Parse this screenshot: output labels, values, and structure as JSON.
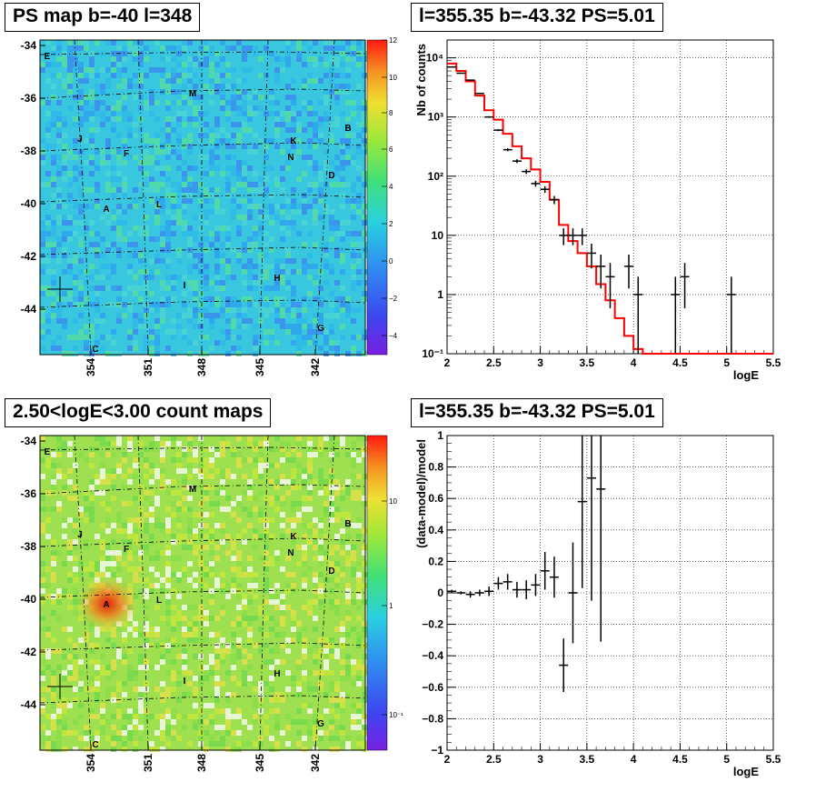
{
  "panels": {
    "tl_title": "PS map b=-40 l=348",
    "tr_title": "l=355.35 b=-43.32 PS=5.01",
    "bl_title": "2.50<logE<3.00 count maps",
    "br_title": "l=355.35 b=-43.32 PS=5.01"
  },
  "maps": {
    "lat_ticks": [
      "-34",
      "-36",
      "-38",
      "-40",
      "-42",
      "-44"
    ],
    "lon_ticks": [
      "354",
      "351",
      "348",
      "345",
      "342"
    ],
    "sources": [
      "E",
      "M",
      "B",
      "J",
      "K",
      "F",
      "N",
      "D",
      "A",
      "L",
      "H",
      "I",
      "G",
      "C"
    ],
    "ps_colorbar_ticks": [
      "12",
      "10",
      "8",
      "6",
      "4",
      "2",
      "0",
      "−2",
      "−4"
    ],
    "count_colorbar_ticks": [
      "10",
      "1",
      "10⁻¹"
    ]
  },
  "chart_data": [
    {
      "type": "line",
      "panel": "top-right",
      "xlabel": "logE",
      "ylabel": "Nb of counts",
      "xlim": [
        2,
        5.5
      ],
      "ylim": [
        0.1,
        20000
      ],
      "log_y": true,
      "grid": true,
      "x_ticks": [
        "2",
        "2.5",
        "3",
        "3.5",
        "4",
        "4.5",
        "5",
        "5.5"
      ],
      "y_ticks": [
        "10⁻¹",
        "1",
        "10",
        "10²",
        "10³",
        "10⁴"
      ],
      "series": [
        {
          "kind": "points",
          "color": "#000000",
          "x": [
            2.05,
            2.15,
            2.25,
            2.35,
            2.45,
            2.55,
            2.65,
            2.75,
            2.85,
            2.95,
            3.05,
            3.15,
            3.25,
            3.35,
            3.45,
            3.55,
            3.65,
            3.75,
            3.95,
            4.05,
            4.45,
            4.55,
            5.05
          ],
          "y": [
            7000,
            5500,
            4200,
            2500,
            1000,
            600,
            280,
            180,
            120,
            75,
            60,
            40,
            10,
            10,
            10,
            5,
            3,
            2,
            3,
            1,
            1,
            2,
            1
          ]
        },
        {
          "kind": "model",
          "color": "#ff0000",
          "x": [
            2.0,
            2.1,
            2.2,
            2.3,
            2.4,
            2.5,
            2.6,
            2.7,
            2.8,
            2.9,
            3.0,
            3.1,
            3.2,
            3.3,
            3.4,
            3.5,
            3.6,
            3.7,
            3.8,
            3.9,
            4.0,
            4.1
          ],
          "y": [
            8000,
            6000,
            4000,
            2300,
            1300,
            900,
            520,
            320,
            200,
            130,
            80,
            40,
            15,
            8,
            5,
            3,
            1.5,
            0.8,
            0.4,
            0.2,
            0.12,
            0.1
          ]
        }
      ]
    },
    {
      "type": "scatter",
      "panel": "bottom-right",
      "xlabel": "logE",
      "ylabel": "(data-model)/model",
      "xlim": [
        2,
        5.5
      ],
      "ylim": [
        -1,
        1
      ],
      "grid": true,
      "x_ticks": [
        "2",
        "2.5",
        "3",
        "3.5",
        "4",
        "4.5",
        "5",
        "5.5"
      ],
      "y_ticks": [
        "−1",
        "−0.8",
        "−0.6",
        "−0.4",
        "−0.2",
        "0",
        "0.2",
        "0.4",
        "0.6",
        "0.8",
        "1"
      ],
      "series": [
        {
          "color": "#000000",
          "x": [
            2.05,
            2.15,
            2.25,
            2.35,
            2.45,
            2.55,
            2.65,
            2.75,
            2.85,
            2.95,
            3.05,
            3.15,
            3.25,
            3.35,
            3.45,
            3.55,
            3.65
          ],
          "y": [
            0.01,
            0.0,
            -0.01,
            0.0,
            0.01,
            0.06,
            0.07,
            0.02,
            0.02,
            0.05,
            0.14,
            0.1,
            -0.46,
            0.0,
            0.58,
            0.73,
            0.66
          ],
          "err": [
            0.01,
            0.01,
            0.02,
            0.02,
            0.03,
            0.04,
            0.05,
            0.05,
            0.06,
            0.07,
            0.12,
            0.13,
            0.17,
            0.32,
            0.55,
            0.78,
            0.97
          ]
        }
      ]
    }
  ]
}
